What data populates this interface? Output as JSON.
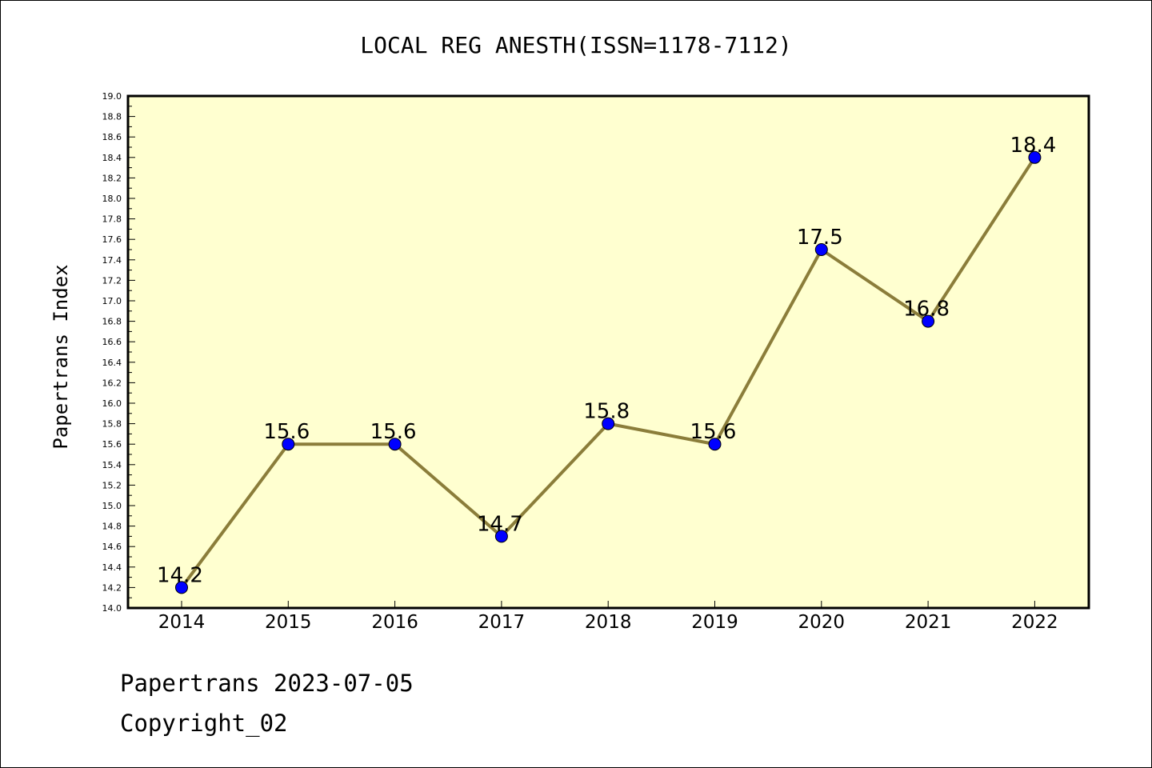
{
  "chart_data": {
    "type": "line",
    "title": "LOCAL REG ANESTH(ISSN=1178-7112)",
    "xlabel": "",
    "ylabel": "Papertrans Index",
    "categories": [
      "2014",
      "2015",
      "2016",
      "2017",
      "2018",
      "2019",
      "2020",
      "2021",
      "2022"
    ],
    "series": [
      {
        "values": [
          14.2,
          15.6,
          15.6,
          14.7,
          15.8,
          15.6,
          17.5,
          16.8,
          18.4
        ],
        "data_labels": [
          "14.2",
          "15.6",
          "15.6",
          "14.7",
          "15.8",
          "15.6",
          "17.5",
          "16.8",
          "18.4"
        ]
      }
    ],
    "ylim": [
      14.0,
      19.0
    ],
    "ytick_labels": [
      "14.0",
      "14.2",
      "14.4",
      "14.6",
      "14.8",
      "15.0",
      "15.2",
      "15.4",
      "15.6",
      "15.8",
      "16.0",
      "16.2",
      "16.4",
      "16.6",
      "16.8",
      "17.0",
      "17.2",
      "17.4",
      "17.6",
      "17.8",
      "18.0",
      "18.2",
      "18.4",
      "18.6",
      "18.8",
      "19.0"
    ],
    "grid": false,
    "legend": "none",
    "colors": {
      "plot_background": "#ffffd0",
      "line": "#8b7d3a",
      "marker": "#0000ff"
    }
  },
  "footer": {
    "line1": "Papertrans 2023-07-05",
    "line2": "Copyright_02"
  }
}
